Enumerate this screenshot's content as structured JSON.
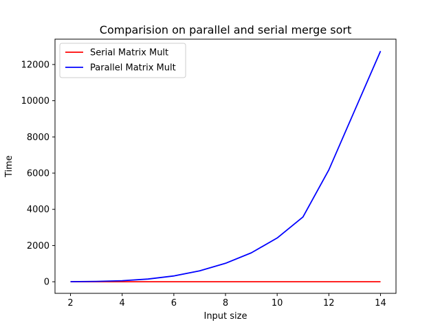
{
  "chart_data": {
    "type": "line",
    "title": "Comparision on parallel and serial merge sort",
    "xlabel": "Input size",
    "ylabel": "Time",
    "xlim": [
      1.4,
      14.6
    ],
    "ylim": [
      -640,
      13400
    ],
    "xticks": [
      2,
      4,
      6,
      8,
      10,
      12,
      14
    ],
    "yticks": [
      0,
      2000,
      4000,
      6000,
      8000,
      10000,
      12000
    ],
    "x": [
      2,
      3,
      4,
      5,
      6,
      7,
      8,
      9,
      10,
      11,
      12,
      13,
      14
    ],
    "series": [
      {
        "name": "Serial Matrix Mult",
        "color": "#ff0000",
        "values": [
          0,
          0,
          0,
          0,
          0,
          0,
          0,
          0,
          0,
          0,
          0,
          0,
          0
        ]
      },
      {
        "name": "Parallel Matrix Mult",
        "color": "#0000ff",
        "values": [
          5,
          20,
          60,
          150,
          320,
          600,
          1020,
          1600,
          2420,
          3580,
          6180,
          9460,
          12740
        ]
      }
    ],
    "grid": false,
    "legend_position": "top-left"
  }
}
